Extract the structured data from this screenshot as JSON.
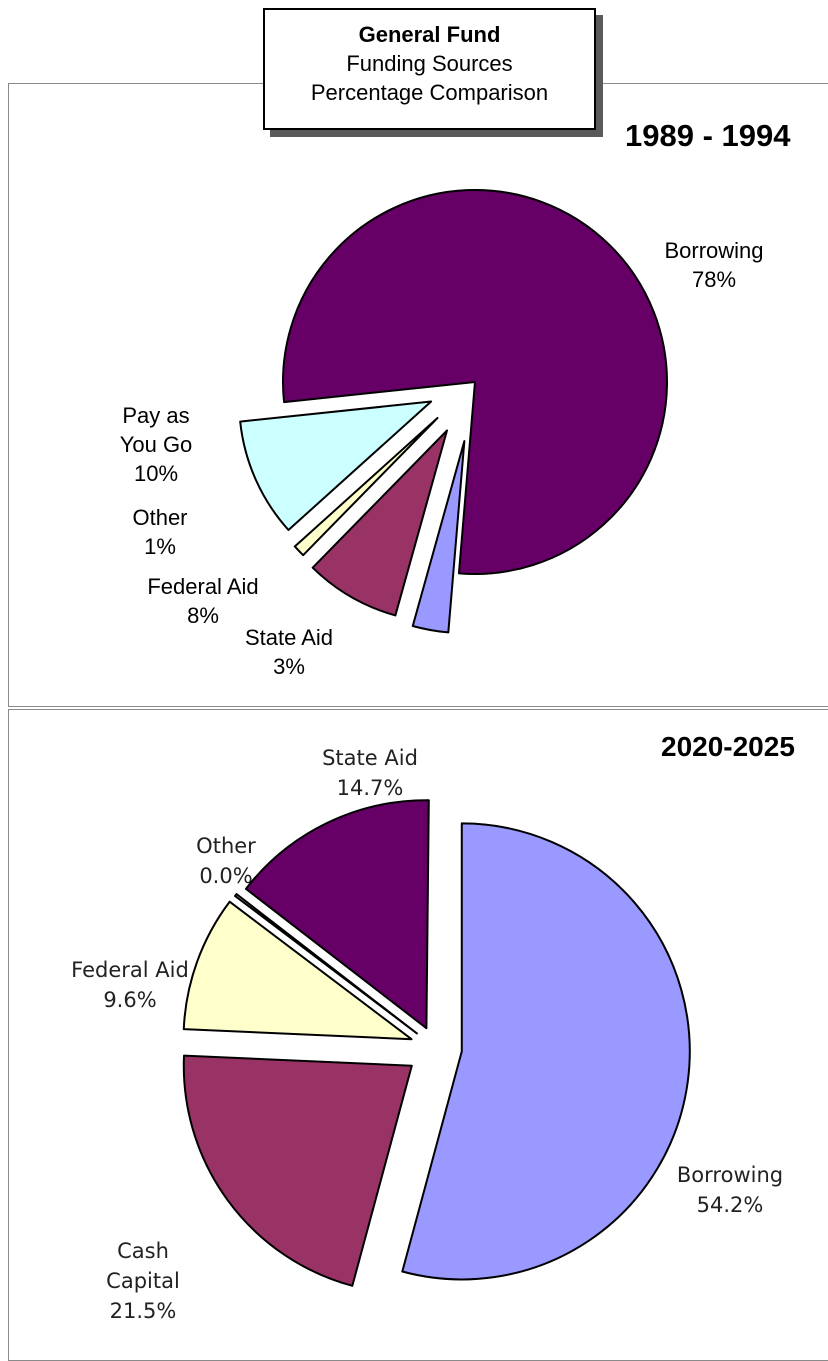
{
  "title": {
    "line1": "General Fund",
    "line2": "Funding Sources",
    "line3": "Percentage Comparison"
  },
  "chart_data": [
    {
      "type": "pie",
      "title": "1989 - 1994",
      "slices": [
        {
          "label": "Borrowing",
          "value": 78,
          "display": "78%",
          "color": "#660066"
        },
        {
          "label": "State Aid",
          "value": 3,
          "display": "3%",
          "color": "#9999ff"
        },
        {
          "label": "Federal Aid",
          "value": 8,
          "display": "8%",
          "color": "#993366"
        },
        {
          "label": "Other",
          "value": 1,
          "display": "1%",
          "color": "#ffffcc"
        },
        {
          "label": "Pay as You Go",
          "value": 10,
          "display": "10%",
          "color": "#ccffff"
        }
      ]
    },
    {
      "type": "pie",
      "title": "2020-2025",
      "slices": [
        {
          "label": "Borrowing",
          "value": 54.2,
          "display": "54.2%",
          "color": "#9999ff"
        },
        {
          "label": "Cash Capital",
          "value": 21.5,
          "display": "21.5%",
          "color": "#993366"
        },
        {
          "label": "Federal Aid",
          "value": 9.6,
          "display": "9.6%",
          "color": "#ffffcc"
        },
        {
          "label": "Other",
          "value": 0.0,
          "display": "0.0%",
          "color": "#ffffff"
        },
        {
          "label": "State Aid",
          "value": 14.7,
          "display": "14.7%",
          "color": "#660066"
        }
      ]
    }
  ],
  "labels1": {
    "borrowing": {
      "line1": "Borrowing",
      "line2": "78%"
    },
    "payg": {
      "line1": "Pay as",
      "line2": "You Go",
      "line3": "10%"
    },
    "other": {
      "line1": "Other",
      "line2": "1%"
    },
    "federal": {
      "line1": "Federal Aid",
      "line2": "8%"
    },
    "state": {
      "line1": "State Aid",
      "line2": "3%"
    }
  },
  "labels2": {
    "state": {
      "line1": "State Aid",
      "line2": "14.7%"
    },
    "other": {
      "line1": "Other",
      "line2": "0.0%"
    },
    "federal": {
      "line1": "Federal Aid",
      "line2": "9.6%"
    },
    "cash": {
      "line1": "Cash",
      "line2": "Capital",
      "line3": "21.5%"
    },
    "borrowing": {
      "line1": "Borrowing",
      "line2": "54.2%"
    }
  }
}
